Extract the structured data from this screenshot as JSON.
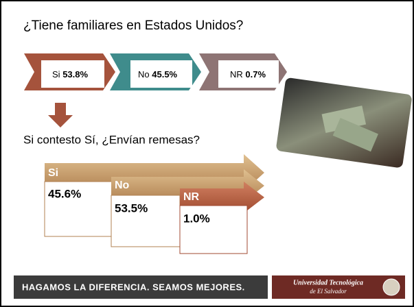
{
  "title": "¿Tiene familiares en Estados Unidos?",
  "first_answers": [
    {
      "label": "Si",
      "percent": "53.8%"
    },
    {
      "label": "No",
      "percent": "45.5%"
    },
    {
      "label": "NR",
      "percent": "0.7%"
    }
  ],
  "question": "Si contesto Sí, ¿Envían remesas?",
  "second_answers": [
    {
      "label": "Si",
      "percent": "45.6%"
    },
    {
      "label": "No",
      "percent": "53.5%"
    },
    {
      "label": "NR",
      "percent": "1.0%"
    }
  ],
  "footer": {
    "slogan": "HAGAMOS LA DIFERENCIA. SEAMOS MEJORES.",
    "logo_line1": "Universidad Tecnológica",
    "logo_line2": "de El Salvador"
  }
}
